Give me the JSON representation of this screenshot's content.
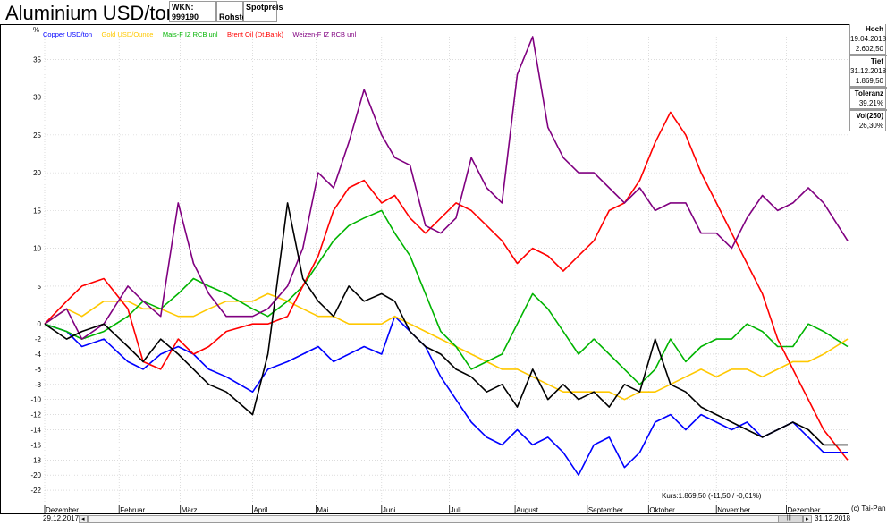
{
  "header": {
    "title": "Aluminium USD/ton",
    "wkn": "WKN: 999190",
    "category": "Rohstoff",
    "price_type": "Spotpreis"
  },
  "stats": {
    "high_label": "Hoch",
    "high_date": "19.04.2018",
    "high_value": "2.602,50",
    "low_label": "Tief",
    "low_date": "31.12.2018",
    "low_value": "1.869,50",
    "tolerance_label": "Toleranz",
    "tolerance_value": "39,21%",
    "vol_label": "Vol(250)",
    "vol_value": "26,30%"
  },
  "footer": {
    "kurs": "Kurs:1.869,50 (-11,50 / -0,61%)",
    "copyright": "(c) Tai-Pan",
    "start_date": "29.12.2017",
    "end_date": "31.12.2018"
  },
  "chart_data": {
    "type": "line",
    "title": "",
    "ylabel": "%",
    "ylim": [
      -24,
      38
    ],
    "yticks": [
      35,
      30,
      25,
      20,
      15,
      10,
      5,
      0,
      -2,
      -4,
      -6,
      -8,
      -10,
      -12,
      -14,
      -16,
      -18,
      -20,
      -22
    ],
    "xlim": [
      "2017-12-29",
      "2018-12-31"
    ],
    "month_labels": [
      "Dezember",
      "Februar",
      "März",
      "April",
      "Mai",
      "Juni",
      "Juli",
      "August",
      "September",
      "Oktober",
      "November",
      "Dezember"
    ],
    "month_dates": [
      "2017-12-29",
      "2018-02-01",
      "2018-03-01",
      "2018-04-03",
      "2018-05-02",
      "2018-06-01",
      "2018-07-02",
      "2018-08-01",
      "2018-09-03",
      "2018-10-01",
      "2018-11-01",
      "2018-12-03"
    ],
    "grid": true,
    "legend_position": "top-left",
    "series": [
      {
        "name": "Copper USD/ton",
        "color": "#0000ff",
        "x": [
          "2017-12-29",
          "2018-01-08",
          "2018-01-15",
          "2018-01-25",
          "2018-02-05",
          "2018-02-12",
          "2018-02-20",
          "2018-02-28",
          "2018-03-07",
          "2018-03-14",
          "2018-03-22",
          "2018-04-03",
          "2018-04-10",
          "2018-04-19",
          "2018-04-26",
          "2018-05-03",
          "2018-05-10",
          "2018-05-17",
          "2018-05-24",
          "2018-06-01",
          "2018-06-07",
          "2018-06-14",
          "2018-06-21",
          "2018-06-28",
          "2018-07-05",
          "2018-07-12",
          "2018-07-19",
          "2018-07-26",
          "2018-08-02",
          "2018-08-09",
          "2018-08-16",
          "2018-08-23",
          "2018-08-30",
          "2018-09-06",
          "2018-09-13",
          "2018-09-20",
          "2018-09-27",
          "2018-10-04",
          "2018-10-11",
          "2018-10-18",
          "2018-10-25",
          "2018-11-01",
          "2018-11-08",
          "2018-11-15",
          "2018-11-22",
          "2018-11-29",
          "2018-12-06",
          "2018-12-13",
          "2018-12-20",
          "2018-12-31"
        ],
        "y": [
          0,
          -1,
          -3,
          -2,
          -5,
          -6,
          -4,
          -3,
          -4,
          -6,
          -7,
          -9,
          -6,
          -5,
          -4,
          -3,
          -5,
          -4,
          -3,
          -4,
          1,
          -1,
          -3,
          -7,
          -10,
          -13,
          -15,
          -16,
          -14,
          -16,
          -15,
          -17,
          -20,
          -16,
          -15,
          -19,
          -17,
          -13,
          -12,
          -14,
          -12,
          -13,
          -14,
          -13,
          -15,
          -14,
          -13,
          -15,
          -17,
          -17
        ]
      },
      {
        "name": "Gold USD/Ounce",
        "color": "#ffc800",
        "x": [
          "2017-12-29",
          "2018-01-08",
          "2018-01-15",
          "2018-01-25",
          "2018-02-05",
          "2018-02-12",
          "2018-02-20",
          "2018-02-28",
          "2018-03-07",
          "2018-03-14",
          "2018-03-22",
          "2018-04-03",
          "2018-04-10",
          "2018-04-19",
          "2018-04-26",
          "2018-05-03",
          "2018-05-10",
          "2018-05-17",
          "2018-05-24",
          "2018-06-01",
          "2018-06-07",
          "2018-06-14",
          "2018-06-21",
          "2018-06-28",
          "2018-07-05",
          "2018-07-12",
          "2018-07-19",
          "2018-07-26",
          "2018-08-02",
          "2018-08-09",
          "2018-08-16",
          "2018-08-23",
          "2018-08-30",
          "2018-09-06",
          "2018-09-13",
          "2018-09-20",
          "2018-09-27",
          "2018-10-04",
          "2018-10-11",
          "2018-10-18",
          "2018-10-25",
          "2018-11-01",
          "2018-11-08",
          "2018-11-15",
          "2018-11-22",
          "2018-11-29",
          "2018-12-06",
          "2018-12-13",
          "2018-12-20",
          "2018-12-31"
        ],
        "y": [
          0,
          2,
          1,
          3,
          3,
          2,
          2,
          1,
          1,
          2,
          3,
          3,
          4,
          3,
          2,
          1,
          1,
          0,
          0,
          0,
          1,
          0,
          -1,
          -2,
          -3,
          -4,
          -5,
          -6,
          -6,
          -7,
          -8,
          -9,
          -9,
          -9,
          -9,
          -10,
          -9,
          -9,
          -8,
          -7,
          -6,
          -7,
          -6,
          -6,
          -7,
          -6,
          -5,
          -5,
          -4,
          -2
        ]
      },
      {
        "name": "Mais-F IZ RCB unl",
        "color": "#00b400",
        "x": [
          "2017-12-29",
          "2018-01-08",
          "2018-01-15",
          "2018-01-25",
          "2018-02-05",
          "2018-02-12",
          "2018-02-20",
          "2018-02-28",
          "2018-03-07",
          "2018-03-14",
          "2018-03-22",
          "2018-04-03",
          "2018-04-10",
          "2018-04-19",
          "2018-04-26",
          "2018-05-03",
          "2018-05-10",
          "2018-05-17",
          "2018-05-24",
          "2018-06-01",
          "2018-06-07",
          "2018-06-14",
          "2018-06-21",
          "2018-06-28",
          "2018-07-05",
          "2018-07-12",
          "2018-07-19",
          "2018-07-26",
          "2018-08-02",
          "2018-08-09",
          "2018-08-16",
          "2018-08-23",
          "2018-08-30",
          "2018-09-06",
          "2018-09-13",
          "2018-09-20",
          "2018-09-27",
          "2018-10-04",
          "2018-10-11",
          "2018-10-18",
          "2018-10-25",
          "2018-11-01",
          "2018-11-08",
          "2018-11-15",
          "2018-11-22",
          "2018-11-29",
          "2018-12-06",
          "2018-12-13",
          "2018-12-20",
          "2018-12-31"
        ],
        "y": [
          0,
          -1,
          -2,
          -1,
          1,
          3,
          2,
          4,
          6,
          5,
          4,
          2,
          1,
          3,
          5,
          8,
          11,
          13,
          14,
          15,
          12,
          9,
          4,
          -1,
          -3,
          -6,
          -5,
          -4,
          0,
          4,
          2,
          -1,
          -4,
          -2,
          -4,
          -6,
          -8,
          -6,
          -2,
          -5,
          -3,
          -2,
          -2,
          0,
          -1,
          -3,
          -3,
          0,
          -1,
          -3
        ]
      },
      {
        "name": "Brent Oil (Dt.Bank)",
        "color": "#ff0000",
        "x": [
          "2017-12-29",
          "2018-01-08",
          "2018-01-15",
          "2018-01-25",
          "2018-02-05",
          "2018-02-12",
          "2018-02-20",
          "2018-02-28",
          "2018-03-07",
          "2018-03-14",
          "2018-03-22",
          "2018-04-03",
          "2018-04-10",
          "2018-04-19",
          "2018-04-26",
          "2018-05-03",
          "2018-05-10",
          "2018-05-17",
          "2018-05-24",
          "2018-06-01",
          "2018-06-07",
          "2018-06-14",
          "2018-06-21",
          "2018-06-28",
          "2018-07-05",
          "2018-07-12",
          "2018-07-19",
          "2018-07-26",
          "2018-08-02",
          "2018-08-09",
          "2018-08-16",
          "2018-08-23",
          "2018-08-30",
          "2018-09-06",
          "2018-09-13",
          "2018-09-20",
          "2018-09-27",
          "2018-10-04",
          "2018-10-11",
          "2018-10-18",
          "2018-10-25",
          "2018-11-01",
          "2018-11-08",
          "2018-11-15",
          "2018-11-22",
          "2018-11-29",
          "2018-12-06",
          "2018-12-13",
          "2018-12-20",
          "2018-12-31"
        ],
        "y": [
          0,
          3,
          5,
          6,
          2,
          -5,
          -6,
          -2,
          -4,
          -3,
          -1,
          0,
          0,
          1,
          5,
          9,
          15,
          18,
          19,
          16,
          17,
          14,
          12,
          14,
          16,
          15,
          13,
          11,
          8,
          10,
          9,
          7,
          9,
          11,
          15,
          16,
          19,
          24,
          28,
          25,
          20,
          16,
          12,
          8,
          4,
          -2,
          -6,
          -10,
          -14,
          -18
        ]
      },
      {
        "name": "Weizen-F IZ RCB unl",
        "color": "#800080",
        "x": [
          "2017-12-29",
          "2018-01-08",
          "2018-01-15",
          "2018-01-25",
          "2018-02-05",
          "2018-02-12",
          "2018-02-20",
          "2018-02-28",
          "2018-03-07",
          "2018-03-14",
          "2018-03-22",
          "2018-04-03",
          "2018-04-10",
          "2018-04-19",
          "2018-04-26",
          "2018-05-03",
          "2018-05-10",
          "2018-05-17",
          "2018-05-24",
          "2018-06-01",
          "2018-06-07",
          "2018-06-14",
          "2018-06-21",
          "2018-06-28",
          "2018-07-05",
          "2018-07-12",
          "2018-07-19",
          "2018-07-26",
          "2018-08-02",
          "2018-08-09",
          "2018-08-16",
          "2018-08-23",
          "2018-08-30",
          "2018-09-06",
          "2018-09-13",
          "2018-09-20",
          "2018-09-27",
          "2018-10-04",
          "2018-10-11",
          "2018-10-18",
          "2018-10-25",
          "2018-11-01",
          "2018-11-08",
          "2018-11-15",
          "2018-11-22",
          "2018-11-29",
          "2018-12-06",
          "2018-12-13",
          "2018-12-20",
          "2018-12-31"
        ],
        "y": [
          0,
          2,
          -2,
          0,
          5,
          3,
          1,
          16,
          8,
          4,
          1,
          1,
          2,
          5,
          10,
          20,
          18,
          24,
          31,
          25,
          22,
          21,
          13,
          12,
          14,
          22,
          18,
          16,
          33,
          38,
          26,
          22,
          20,
          20,
          18,
          16,
          18,
          15,
          16,
          16,
          12,
          12,
          10,
          14,
          17,
          15,
          16,
          18,
          16,
          11
        ]
      },
      {
        "name": "Aluminium USD/ton",
        "color": "#000000",
        "x": [
          "2017-12-29",
          "2018-01-08",
          "2018-01-15",
          "2018-01-25",
          "2018-02-05",
          "2018-02-12",
          "2018-02-20",
          "2018-02-28",
          "2018-03-07",
          "2018-03-14",
          "2018-03-22",
          "2018-04-03",
          "2018-04-10",
          "2018-04-19",
          "2018-04-26",
          "2018-05-03",
          "2018-05-10",
          "2018-05-17",
          "2018-05-24",
          "2018-06-01",
          "2018-06-07",
          "2018-06-14",
          "2018-06-21",
          "2018-06-28",
          "2018-07-05",
          "2018-07-12",
          "2018-07-19",
          "2018-07-26",
          "2018-08-02",
          "2018-08-09",
          "2018-08-16",
          "2018-08-23",
          "2018-08-30",
          "2018-09-06",
          "2018-09-13",
          "2018-09-20",
          "2018-09-27",
          "2018-10-04",
          "2018-10-11",
          "2018-10-18",
          "2018-10-25",
          "2018-11-01",
          "2018-11-08",
          "2018-11-15",
          "2018-11-22",
          "2018-11-29",
          "2018-12-06",
          "2018-12-13",
          "2018-12-20",
          "2018-12-31"
        ],
        "y": [
          0,
          -2,
          -1,
          0,
          -3,
          -5,
          -2,
          -4,
          -6,
          -8,
          -9,
          -12,
          -4,
          16,
          6,
          3,
          1,
          5,
          3,
          4,
          3,
          -1,
          -3,
          -4,
          -6,
          -7,
          -9,
          -8,
          -11,
          -6,
          -10,
          -8,
          -10,
          -9,
          -11,
          -8,
          -9,
          -2,
          -8,
          -9,
          -11,
          -12,
          -13,
          -14,
          -15,
          -14,
          -13,
          -14,
          -16,
          -16
        ]
      }
    ]
  }
}
